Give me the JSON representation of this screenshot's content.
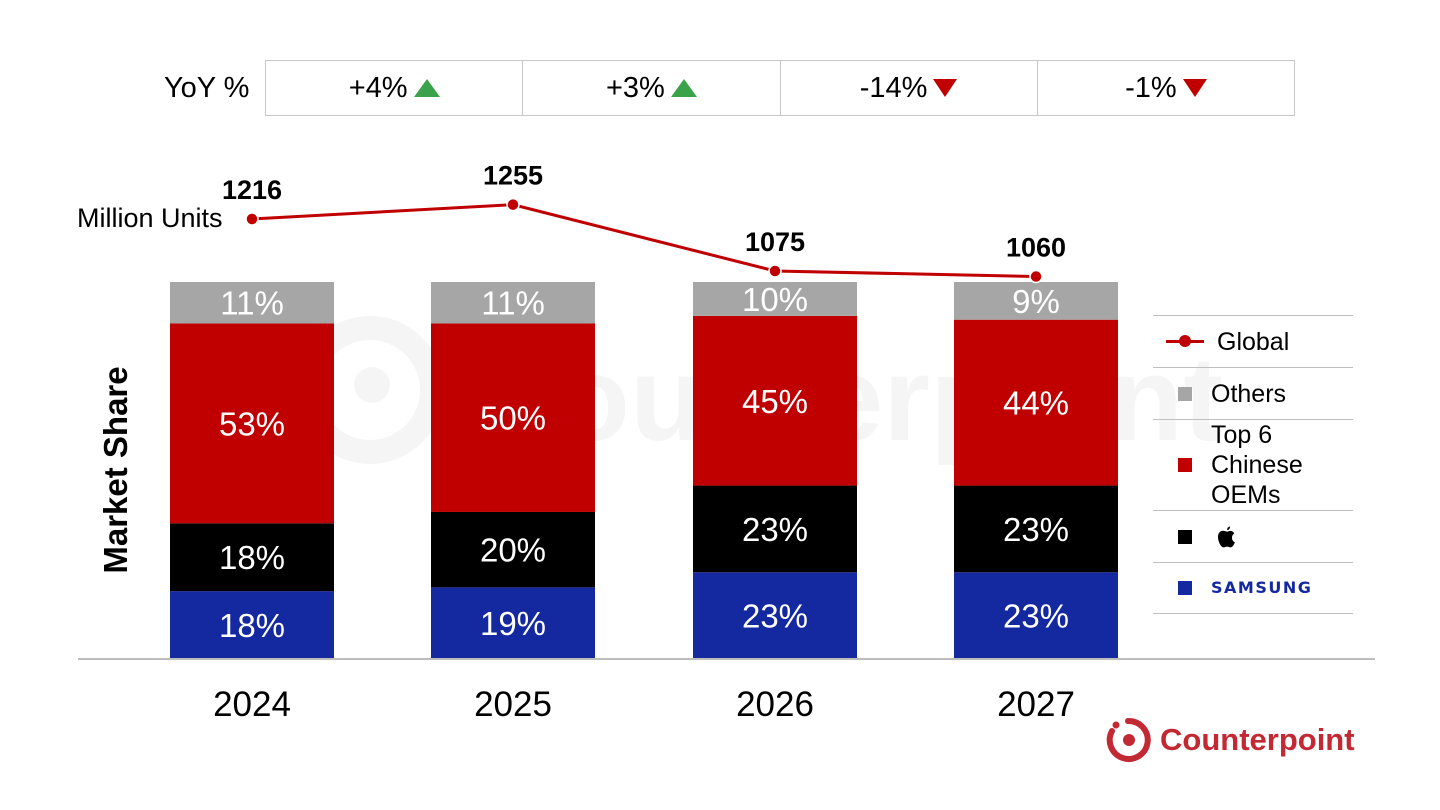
{
  "yoy": {
    "label": "YoY %",
    "cells": [
      {
        "value": "+4%",
        "direction": "up"
      },
      {
        "value": "+3%",
        "direction": "up"
      },
      {
        "value": "-14%",
        "direction": "down"
      },
      {
        "value": "-1%",
        "direction": "down"
      }
    ]
  },
  "line_label": "Million Units",
  "y_axis_label": "Market Share",
  "legend": {
    "global": "Global",
    "others": "Others",
    "chinese": "Top 6 Chinese OEMs",
    "apple": "",
    "samsung": "SAMSUNG"
  },
  "brand": {
    "name": "Counterpoint"
  },
  "colors": {
    "others": "#a6a6a6",
    "chinese": "#c00000",
    "apple": "#000000",
    "samsung": "#1428a0",
    "line": "#c00000",
    "yoy_up": "#3aa34a",
    "yoy_down": "#c00000",
    "brand": "#c22933"
  },
  "chart_data": {
    "type": "bar",
    "stacked": true,
    "categories": [
      "2024",
      "2025",
      "2026",
      "2027"
    ],
    "series": [
      {
        "key": "samsung",
        "values": [
          18,
          19,
          23,
          23
        ],
        "labels": [
          "18%",
          "19%",
          "23%",
          "23%"
        ]
      },
      {
        "key": "apple",
        "values": [
          18,
          20,
          23,
          23
        ],
        "labels": [
          "18%",
          "20%",
          "23%",
          "23%"
        ]
      },
      {
        "key": "chinese",
        "name": "Top 6 Chinese OEMs",
        "values": [
          53,
          50,
          45,
          44
        ],
        "labels": [
          "53%",
          "50%",
          "45%",
          "44%"
        ]
      },
      {
        "key": "others",
        "name": "Others",
        "values": [
          11,
          11,
          10,
          9
        ],
        "labels": [
          "11%",
          "11%",
          "10%",
          "9%"
        ]
      }
    ],
    "line": {
      "name": "Global",
      "values": [
        1216,
        1255,
        1075,
        1060
      ],
      "labels": [
        "1216",
        "1255",
        "1075",
        "1060"
      ]
    },
    "ylabel": "Market Share",
    "ylim": [
      0,
      100
    ],
    "grid": false,
    "legend": "right"
  }
}
